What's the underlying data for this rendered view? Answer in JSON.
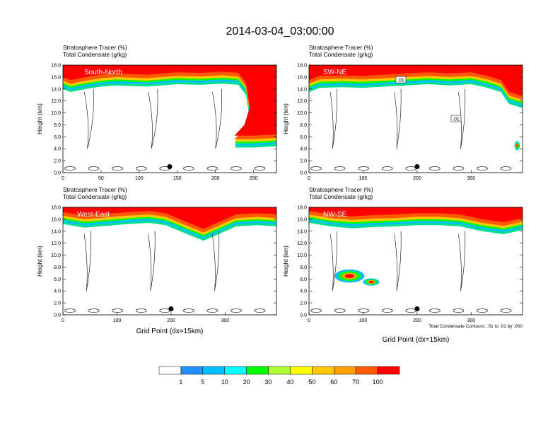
{
  "title": "2014-03-04_03:00:00",
  "colorbar": {
    "labels": [
      "1",
      "5",
      "10",
      "20",
      "30",
      "40",
      "50",
      "60",
      "70",
      "100"
    ],
    "colors": [
      "#ffffff",
      "#1e90ff",
      "#00bfff",
      "#00ffff",
      "#00e08c",
      "#00ff00",
      "#adff2f",
      "#ffff00",
      "#ffc800",
      "#ffa000",
      "#ff5a00",
      "#ff0000"
    ]
  },
  "contour_note": "Total Condensate Contours: .01 to .01 by .000",
  "chart_data": [
    {
      "type": "heatmap",
      "panel": "South-North",
      "subtitle_left": "Stratosphere Tracer",
      "subtitle_left_units": "(%)",
      "subtitle_left2": "Total Condensate",
      "subtitle_left2_units": "(g/kg)",
      "ylabel": "Height (km)",
      "xlabel": "",
      "xlim": [
        0,
        280
      ],
      "ylim": [
        0,
        18
      ],
      "xticks": [
        0,
        50,
        100,
        150,
        200,
        250
      ],
      "yticks": [
        "0.0",
        "2.0",
        "4.0",
        "6.0",
        "8.0",
        "10.0",
        "12.0",
        "14.0",
        "16.0",
        "18.0"
      ],
      "marker": {
        "x": 140,
        "y": 1.0
      }
    },
    {
      "type": "heatmap",
      "panel": "SW-NE",
      "subtitle_left": "Stratosphere Tracer",
      "subtitle_left_units": "(%)",
      "subtitle_left2": "Total Condensate",
      "subtitle_left2_units": "(g/kg)",
      "ylabel": "Height (km)",
      "xlabel": "",
      "xlim": [
        0,
        395
      ],
      "ylim": [
        0,
        18
      ],
      "xticks": [
        0,
        100,
        200,
        300
      ],
      "yticks": [
        "0.0",
        "2.0",
        "4.0",
        "6.0",
        "8.0",
        "10.0",
        "12.0",
        "14.0",
        "16.0",
        "18.0"
      ],
      "marker": {
        "x": 200,
        "y": 1.0
      },
      "contour_labels": [
        ".01",
        ".01"
      ]
    },
    {
      "type": "heatmap",
      "panel": "West-East",
      "subtitle_left": "Stratosphere Tracer",
      "subtitle_left_units": "(%)",
      "subtitle_left2": "Total Condensate",
      "subtitle_left2_units": "(g/kg)",
      "ylabel": "Height (km)",
      "xlabel": "Grid Point (dx=15km)",
      "xlim": [
        0,
        395
      ],
      "ylim": [
        0,
        18
      ],
      "xticks": [
        0,
        100,
        200,
        300
      ],
      "yticks": [
        "0.0",
        "2.0",
        "4.0",
        "6.0",
        "8.0",
        "10.0",
        "12.0",
        "14.0",
        "16.0",
        "18.0"
      ],
      "marker": {
        "x": 200,
        "y": 1.0
      }
    },
    {
      "type": "heatmap",
      "panel": "NW-SE",
      "subtitle_left": "Stratosphere Tracer",
      "subtitle_left_units": "(%)",
      "subtitle_left2": "Total Condensate",
      "subtitle_left2_units": "(g/kg)",
      "ylabel": "Height (km)",
      "xlabel": "Grid Point (dx=15km)",
      "xlim": [
        0,
        395
      ],
      "ylim": [
        0,
        18
      ],
      "xticks": [
        0,
        100,
        200,
        300
      ],
      "yticks": [
        "0.0",
        "2.0",
        "4.0",
        "6.0",
        "8.0",
        "10.0",
        "12.0",
        "14.0",
        "16.0",
        "18.0"
      ],
      "marker": {
        "x": 200,
        "y": 1.0
      }
    }
  ]
}
